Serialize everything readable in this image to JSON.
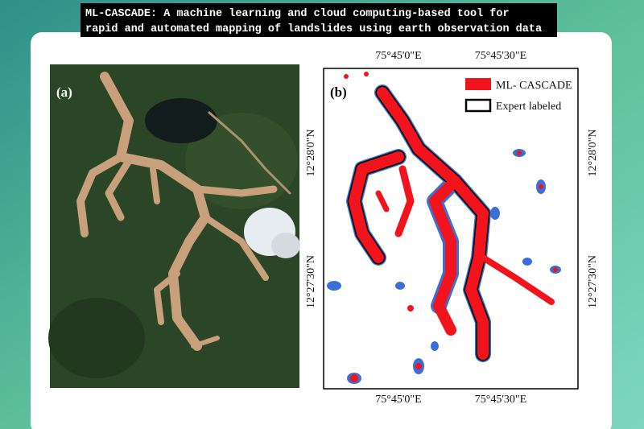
{
  "header": {
    "title_lines": [
      "ML-CASCADE: A machine learning and cloud computing-based tool for",
      "rapid and automated mapping of landslides using earth observation data"
    ]
  },
  "panel_a": {
    "label": "(a)"
  },
  "panel_b": {
    "label": "(b)",
    "legend": [
      "ML- CASCADE",
      "Expert labeled"
    ],
    "top_labels": [
      "75°45'0\"E",
      "75°45'30\"E"
    ],
    "bottom_labels": [
      "75°45'0\"E",
      "75°45'30\"E"
    ],
    "left_labels": [
      "12°28'0\"N",
      "12°27'30\"N"
    ],
    "right_labels": [
      "12°28'0\"N",
      "12°27'30\"N"
    ]
  }
}
